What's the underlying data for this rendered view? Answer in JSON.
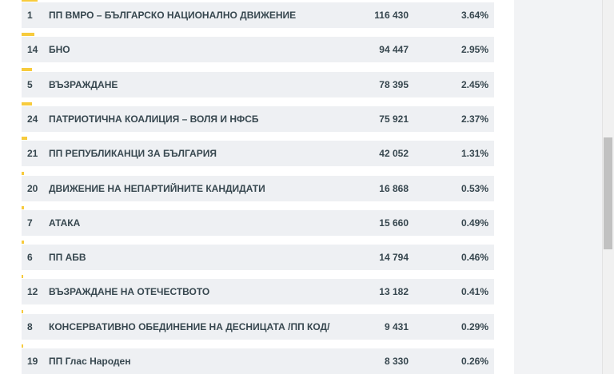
{
  "results": [
    {
      "number": "1",
      "name": "ПП ВМРО – БЪЛГАРСКО НАЦИОНАЛНО ДВИЖЕНИЕ",
      "votes": "116 430",
      "percent": "3.64%",
      "share": 3.64
    },
    {
      "number": "14",
      "name": "БНО",
      "votes": "94 447",
      "percent": "2.95%",
      "share": 2.95
    },
    {
      "number": "5",
      "name": "ВЪЗРАЖДАНЕ",
      "votes": "78 395",
      "percent": "2.45%",
      "share": 2.45
    },
    {
      "number": "24",
      "name": "ПАТРИОТИЧНА КОАЛИЦИЯ – ВОЛЯ И НФСБ",
      "votes": "75 921",
      "percent": "2.37%",
      "share": 2.37
    },
    {
      "number": "21",
      "name": "ПП РЕПУБЛИКАНЦИ ЗА БЪЛГАРИЯ",
      "votes": "42 052",
      "percent": "1.31%",
      "share": 1.31
    },
    {
      "number": "20",
      "name": "ДВИЖЕНИЕ НА НЕПАРТИЙНИТЕ КАНДИДАТИ",
      "votes": "16 868",
      "percent": "0.53%",
      "share": 0.53
    },
    {
      "number": "7",
      "name": "АТАКА",
      "votes": "15 660",
      "percent": "0.49%",
      "share": 0.49
    },
    {
      "number": "6",
      "name": "ПП АБВ",
      "votes": "14 794",
      "percent": "0.46%",
      "share": 0.46
    },
    {
      "number": "12",
      "name": "ВЪЗРАЖДАНЕ НА ОТЕЧЕСТВОТО",
      "votes": "13 182",
      "percent": "0.41%",
      "share": 0.41
    },
    {
      "number": "8",
      "name": "КОНСЕРВАТИВНО ОБЕДИНЕНИЕ НА ДЕСНИЦАТА /ПП КОД/",
      "votes": "9 431",
      "percent": "0.29%",
      "share": 0.29
    },
    {
      "number": "19",
      "name": "ПП Глас Народен",
      "votes": "8 330",
      "percent": "0.26%",
      "share": 0.26
    }
  ],
  "colors": {
    "bar": "#f7cb3d",
    "row_background": "#eef0f3",
    "text": "#37474f"
  }
}
